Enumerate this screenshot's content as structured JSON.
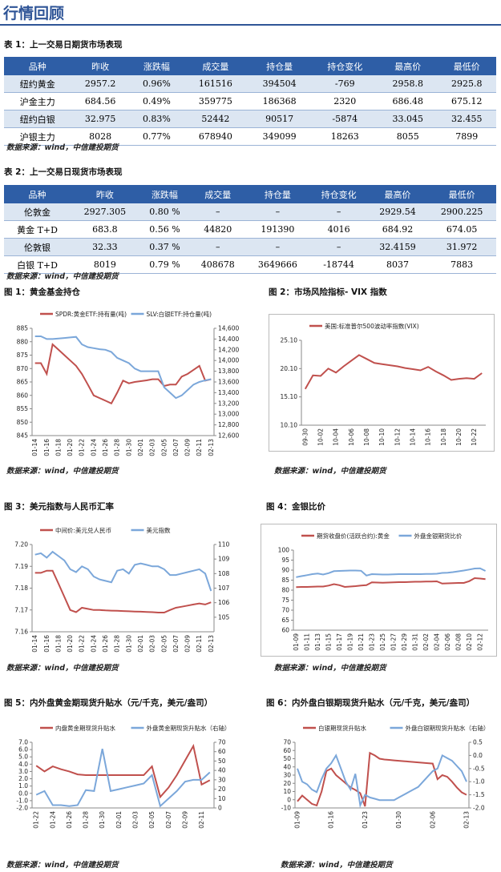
{
  "header": {
    "title": "行情回顾"
  },
  "table1": {
    "caption": "表 1：上一交易日期货市场表现",
    "headers": [
      "品种",
      "昨收",
      "涨跌幅",
      "成交量",
      "持仓量",
      "持仓变化",
      "最高价",
      "最低价"
    ],
    "rows": [
      [
        "纽约黄金",
        "2957.2",
        "0.96%",
        "161516",
        "394504",
        "-769",
        "2958.8",
        "2925.8"
      ],
      [
        "沪金主力",
        "684.56",
        "0.49%",
        "359775",
        "186368",
        "2320",
        "686.48",
        "675.12"
      ],
      [
        "纽约白银",
        "32.975",
        "0.83%",
        "52442",
        "90517",
        "-5874",
        "33.045",
        "32.455"
      ],
      [
        "沪银主力",
        "8028",
        "0.77%",
        "678940",
        "349099",
        "18263",
        "8055",
        "7899"
      ]
    ],
    "source": "数据来源：wind，中信建投期货"
  },
  "table2": {
    "caption": "表 2：上一交易日现货市场表现",
    "headers": [
      "品种",
      "昨收",
      "涨跌幅",
      "成交量",
      "持仓量",
      "持仓变化",
      "最高价",
      "最低价"
    ],
    "rows": [
      [
        "伦敦金",
        "2927.305",
        "0.80 %",
        "–",
        "–",
        "–",
        "2929.54",
        "2900.225"
      ],
      [
        "黄金 T+D",
        "683.8",
        "0.56 %",
        "44820",
        "191390",
        "4016",
        "684.92",
        "674.05"
      ],
      [
        "伦敦银",
        "32.33",
        "0.37 %",
        "–",
        "–",
        "–",
        "32.4159",
        "31.972"
      ],
      [
        "白银 T+D",
        "8019",
        "0.79 %",
        "408678",
        "3649666",
        "-18744",
        "8037",
        "7883"
      ]
    ],
    "source": "数据来源：wind，中信建投期货"
  },
  "chart_data": [
    {
      "type": "line",
      "title": "图 1：黄金基金持仓",
      "source": "数据来源：wind，中信建投期货",
      "legend": "top",
      "categories": [
        "01-14",
        null,
        "01-16",
        null,
        "01-18",
        null,
        "01-20",
        null,
        "01-22",
        null,
        "01-24",
        null,
        "01-26",
        null,
        "01-28",
        null,
        "01-30",
        null,
        "02-01",
        null,
        "02-03",
        null,
        "02-05",
        null,
        "02-07",
        null,
        "02-09",
        null,
        "02-11",
        null,
        "02-13"
      ],
      "ylim": [
        845,
        885
      ],
      "yticks": [
        845,
        850,
        855,
        860,
        865,
        870,
        875,
        880,
        885
      ],
      "y2lim": [
        12600,
        14600
      ],
      "y2ticks": [
        {
          "value": 12600,
          "label": "12,600"
        },
        {
          "value": 12800,
          "label": "12,800"
        },
        {
          "value": 13000,
          "label": "13,000"
        },
        {
          "value": 13200,
          "label": "13,200"
        },
        {
          "value": 13400,
          "label": "13,400"
        },
        {
          "value": 13600,
          "label": "13,600"
        },
        {
          "value": 13800,
          "label": "13,800"
        },
        {
          "value": 14000,
          "label": "14,000"
        },
        {
          "value": 14200,
          "label": "14,200"
        },
        {
          "value": 14400,
          "label": "14,400"
        },
        {
          "value": 14600,
          "label": "14,600"
        }
      ],
      "series": [
        {
          "name": "SPDR:黄金ETF:持有量(吨)",
          "color": "#c0504d",
          "values": [
            872,
            872,
            868,
            879,
            877,
            875,
            873,
            871,
            868,
            864,
            860,
            859,
            858,
            857,
            861,
            865.5,
            864.5,
            865,
            865.3,
            865.6,
            866,
            866,
            863.5,
            864,
            864,
            867,
            868,
            869.5,
            871,
            865.5,
            866
          ]
        },
        {
          "name": "SLV:白银ETF:持仓量(吨)",
          "color": "#7ba7da",
          "axis": "y2",
          "values": [
            14450,
            14450,
            14400,
            14400,
            14410,
            14420,
            14430,
            14440,
            14300,
            14250,
            14230,
            14210,
            14200,
            14160,
            14050,
            14000,
            13950,
            13850,
            13800,
            13800,
            13800,
            13800,
            13500,
            13400,
            13300,
            13350,
            13450,
            13550,
            13600,
            13630,
            13650
          ]
        }
      ]
    },
    {
      "type": "line",
      "title": "图 2：市场风险指标- VIX 指数",
      "source": "数据来源：wind，中信建投期货",
      "legend": "top",
      "categories": [
        "09-30",
        null,
        "10-02",
        null,
        "10-04",
        null,
        "10-06",
        null,
        "10-08",
        null,
        "10-10",
        null,
        "10-12",
        null,
        "10-14",
        null,
        "10-16",
        null,
        "10-18",
        null,
        "10-20",
        null,
        "10-22",
        null
      ],
      "ylim": [
        10.1,
        25.1
      ],
      "yticks": [
        {
          "value": 10.1,
          "label": "10.10"
        },
        {
          "value": 15.1,
          "label": "15.10"
        },
        {
          "value": 20.1,
          "label": "20.10"
        },
        {
          "value": 25.1,
          "label": "25.10"
        }
      ],
      "series": [
        {
          "name": "美国:标准普尔500波动率指数(VIX)",
          "color": "#c0504d",
          "values": [
            16.5,
            18.9,
            18.8,
            20.1,
            19.4,
            20.5,
            21.5,
            22.5,
            21.8,
            21.1,
            20.9,
            20.7,
            20.5,
            20.2,
            20.0,
            19.8,
            20.4,
            19.6,
            18.9,
            18.1,
            18.3,
            18.4,
            18.3,
            19.3
          ]
        }
      ]
    },
    {
      "type": "line",
      "title": "图 3：美元指数与人民币汇率",
      "source": "数据来源：wind，中信建投期货",
      "legend": "top",
      "categories": [
        "01-14",
        null,
        "01-16",
        null,
        "01-18",
        null,
        "01-20",
        null,
        "01-22",
        null,
        "01-24",
        null,
        "01-26",
        null,
        "01-28",
        null,
        "01-30",
        null,
        "02-01",
        null,
        "02-03",
        null,
        "02-05",
        null,
        "02-07",
        null,
        "02-09",
        null,
        "02-11",
        null,
        "02-13"
      ],
      "ylim": [
        7.16,
        7.2
      ],
      "yticks": [
        7.16,
        7.17,
        7.18,
        7.19,
        {
          "value": 7.2,
          "label": "7.20"
        }
      ],
      "y2lim": [
        104,
        110
      ],
      "y2ticks": [
        105,
        106,
        107,
        108,
        109,
        110
      ],
      "series": [
        {
          "name": "中间价:美元兑人民币",
          "color": "#c0504d",
          "values": [
            7.187,
            7.187,
            7.188,
            7.188,
            7.182,
            7.176,
            7.17,
            7.169,
            7.171,
            7.1705,
            7.17,
            7.17,
            7.1698,
            7.1697,
            7.1696,
            7.1695,
            7.1694,
            7.1693,
            7.1692,
            7.1691,
            7.169,
            7.1688,
            7.1688,
            7.17,
            7.171,
            7.1715,
            7.172,
            7.1725,
            7.173,
            7.1725,
            7.1735
          ]
        },
        {
          "name": "美元指数",
          "color": "#7ba7da",
          "axis": "y2",
          "values": [
            109.3,
            109.4,
            109.1,
            109.5,
            109.2,
            108.9,
            108.3,
            108.1,
            108.5,
            108.3,
            107.8,
            107.6,
            107.5,
            107.4,
            108.2,
            108.3,
            108.0,
            108.6,
            108.7,
            108.6,
            108.5,
            108.5,
            108.3,
            107.9,
            107.9,
            108.0,
            108.1,
            108.2,
            108.3,
            108.0,
            106.8
          ]
        }
      ]
    },
    {
      "type": "line",
      "title": "图 4：金银比价",
      "source": "数据来源：wind，中信建投期货",
      "legend": "top",
      "categories": [
        "01-09",
        null,
        "01-11",
        null,
        "01-13",
        null,
        "01-15",
        null,
        "01-17",
        null,
        "01-19",
        null,
        "01-21",
        null,
        "01-23",
        null,
        "01-25",
        null,
        "01-27",
        null,
        "01-29",
        null,
        "01-31",
        null,
        "02-02",
        null,
        "02-04",
        null,
        "02-06",
        null,
        "02-08",
        null,
        "02-10",
        null,
        "02-12",
        null
      ],
      "ylim": [
        60,
        100
      ],
      "yticks": [
        60,
        65,
        70,
        75,
        80,
        85,
        90,
        95,
        100
      ],
      "series": [
        {
          "name": "期货收盘价(活跃合约):黄金",
          "color": "#c0504d",
          "values": [
            81.5,
            81.6,
            81.6,
            81.7,
            81.8,
            81.8,
            82.3,
            83.0,
            82.5,
            81.6,
            81.8,
            82.0,
            82.3,
            82.5,
            83.9,
            83.8,
            83.7,
            83.8,
            83.9,
            84.0,
            84.0,
            84.1,
            84.2,
            84.2,
            84.3,
            84.3,
            84.4,
            83.3,
            83.4,
            83.5,
            83.6,
            83.6,
            84.5,
            86.0,
            85.8,
            85.5
          ]
        },
        {
          "name": "外盘金银期货比价",
          "color": "#7ba7da",
          "values": [
            86.5,
            87.0,
            87.5,
            88.0,
            88.3,
            87.8,
            88.5,
            89.5,
            89.6,
            89.7,
            89.8,
            89.8,
            89.7,
            87.3,
            88.0,
            87.9,
            87.8,
            87.8,
            87.9,
            88.0,
            88.0,
            88.0,
            88.0,
            88.0,
            88.1,
            88.1,
            88.2,
            88.6,
            88.7,
            89.0,
            89.4,
            89.8,
            90.3,
            90.8,
            90.9,
            89.6
          ]
        }
      ]
    },
    {
      "type": "line",
      "title": "图 5：内外盘黄金期现货升贴水（元/千克，美元/盎司）",
      "source": "数据来源：wind，中信建投期货",
      "legend": "top",
      "categories": [
        "01-22",
        null,
        "01-24",
        null,
        "01-26",
        null,
        "01-28",
        null,
        "01-30",
        null,
        "02-01",
        null,
        "02-03",
        null,
        "02-05",
        null,
        "02-07",
        null,
        "02-09",
        null,
        "02-11",
        null
      ],
      "ylim": [
        -2,
        7
      ],
      "yticks": [
        {
          "value": -2,
          "label": "-2.0"
        },
        {
          "value": -1,
          "label": "-1.0"
        },
        {
          "value": 0,
          "label": "0.0"
        },
        {
          "value": 1,
          "label": "1.0"
        },
        {
          "value": 2,
          "label": "2.0"
        },
        {
          "value": 3,
          "label": "3.0"
        },
        {
          "value": 4,
          "label": "4.0"
        },
        {
          "value": 5,
          "label": "5.0"
        },
        {
          "value": 6,
          "label": "6.0"
        },
        {
          "value": 7,
          "label": "7.0"
        }
      ],
      "y2lim": [
        0,
        70
      ],
      "y2ticks": [
        0,
        10,
        20,
        30,
        40,
        50,
        60,
        70
      ],
      "series": [
        {
          "name": "内盘黄金期现货升贴水",
          "color": "#c0504d",
          "values": [
            3.8,
            3.0,
            3.7,
            3.3,
            3.0,
            2.6,
            2.5,
            2.5,
            2.5,
            2.5,
            2.5,
            2.5,
            2.5,
            2.5,
            3.7,
            -0.5,
            0.8,
            2.5,
            4.5,
            6.5,
            1.2,
            1.8
          ]
        },
        {
          "name": "外盘黄金期现货升贴水（右轴）",
          "color": "#7ba7da",
          "axis": "y2",
          "values": [
            14,
            18,
            3,
            3,
            2,
            3,
            19,
            18,
            63,
            18,
            20,
            22,
            24,
            26,
            35,
            2,
            10,
            18,
            28,
            30,
            30,
            38
          ]
        }
      ]
    },
    {
      "type": "line",
      "title": "图 6：内外盘白银期现货升贴水（元/千克，美元/盎司）",
      "source": "数据来源：wind，中信建投期货",
      "legend": "top",
      "categories": [
        "01-09",
        null,
        null,
        null,
        null,
        null,
        null,
        "01-16",
        null,
        null,
        null,
        null,
        null,
        null,
        "01-23",
        null,
        null,
        null,
        null,
        null,
        null,
        "01-30",
        null,
        null,
        null,
        null,
        null,
        null,
        "02-06",
        null,
        null,
        null,
        null,
        null,
        null,
        "02-13"
      ],
      "ylim": [
        -10,
        70
      ],
      "yticks": [
        -10,
        0,
        10,
        20,
        30,
        40,
        50,
        60,
        70
      ],
      "y2lim": [
        -2,
        0.5
      ],
      "y2ticks": [
        {
          "value": -2,
          "label": "-2.0"
        },
        {
          "value": -1.5,
          "label": "-1.5"
        },
        {
          "value": -1,
          "label": "-1.0"
        },
        {
          "value": -0.5,
          "label": "-0.5"
        },
        {
          "value": 0,
          "label": "0.0"
        },
        {
          "value": 0.5,
          "label": "0.5"
        }
      ],
      "series": [
        {
          "name": "白银期现货升贴水",
          "color": "#c0504d",
          "values": [
            -2,
            5,
            0,
            -5,
            -7,
            10,
            35,
            38,
            30,
            25,
            20,
            15,
            12,
            8,
            -8,
            57,
            54,
            50,
            49,
            48.5,
            48,
            47.5,
            47,
            46.5,
            46,
            45.5,
            45,
            44.5,
            44,
            25,
            30,
            28,
            22,
            15,
            9,
            6
          ]
        },
        {
          "name": "外盘白银期现货升贴水（右轴）",
          "color": "#7ba7da",
          "axis": "y2",
          "values": [
            -0.5,
            -1.0,
            -1.1,
            -1.3,
            -1.4,
            -0.9,
            -0.5,
            -0.3,
            0.0,
            -0.5,
            -1.0,
            -1.3,
            -0.7,
            -1.9,
            -1.5,
            -1.6,
            -1.65,
            -1.7,
            -1.7,
            -1.7,
            -1.7,
            -1.6,
            -1.5,
            -1.4,
            -1.3,
            -1.2,
            -1.0,
            -0.8,
            -0.6,
            -0.5,
            0.0,
            -0.1,
            -0.2,
            -0.4,
            -0.6,
            -1.0
          ]
        }
      ]
    }
  ]
}
